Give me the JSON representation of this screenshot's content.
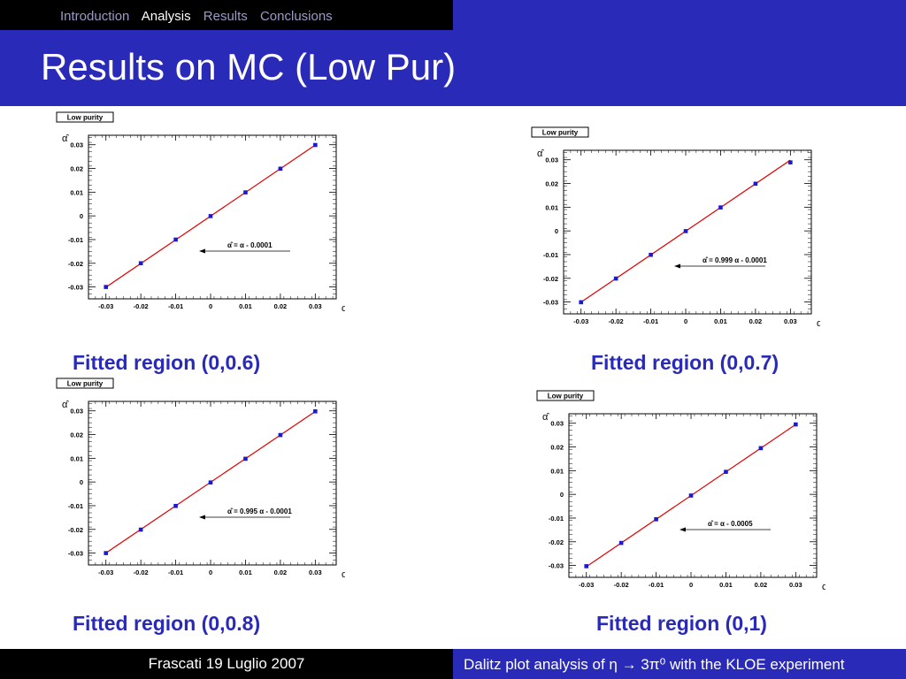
{
  "nav": {
    "items": [
      {
        "label": "Introduction",
        "active": false
      },
      {
        "label": "Analysis",
        "active": true
      },
      {
        "label": "Results",
        "active": false
      },
      {
        "label": "Conclusions",
        "active": false
      }
    ]
  },
  "header": {
    "title": "Results on MC (Low Pur)"
  },
  "colors": {
    "nav_bg": "#000000",
    "header_bg": "#2a2ab8",
    "caption": "#2a2ab8",
    "fit_line": "#e00000",
    "marker": "#1a1ad0"
  },
  "plots": [
    {
      "caption": "Fitted region (0,0.6)"
    },
    {
      "caption": "Fitted region (0,0.7)"
    },
    {
      "caption": "Fitted region (0,0.8)"
    },
    {
      "caption": "Fitted region (0,1)"
    }
  ],
  "chart_data": [
    {
      "type": "scatter",
      "title": "Low purity",
      "xlabel": "α",
      "ylabel": "α̂",
      "x": [
        -0.03,
        -0.02,
        -0.01,
        0,
        0.01,
        0.02,
        0.03
      ],
      "y": [
        -0.03,
        -0.02,
        -0.01,
        -0.0001,
        0.0099,
        0.0199,
        0.0299
      ],
      "xlim": [
        -0.035,
        0.036
      ],
      "ylim": [
        -0.035,
        0.034
      ],
      "xticks": [
        "-0.03",
        "-0.02",
        "-0.01",
        "0",
        "0.01",
        "0.02",
        "0.03"
      ],
      "yticks": [
        "-0.03",
        "-0.02",
        "-0.01",
        "0",
        "0.01",
        "0.02",
        "0.03"
      ],
      "fit": {
        "slope": 1.0,
        "intercept": -0.0001
      },
      "annotation": {
        "prefix": "α̂ = α - 0.0001"
      }
    },
    {
      "type": "scatter",
      "title": "Low purity",
      "xlabel": "α",
      "ylabel": "α̂",
      "x": [
        -0.03,
        -0.02,
        -0.01,
        0,
        0.01,
        0.02,
        0.03
      ],
      "y": [
        -0.0301,
        -0.0201,
        -0.0101,
        -0.0001,
        0.0099,
        0.0199,
        0.0289
      ],
      "xlim": [
        -0.035,
        0.036
      ],
      "ylim": [
        -0.035,
        0.034
      ],
      "xticks": [
        "-0.03",
        "-0.02",
        "-0.01",
        "0",
        "0.01",
        "0.02",
        "0.03"
      ],
      "yticks": [
        "-0.03",
        "-0.02",
        "-0.01",
        "0",
        "0.01",
        "0.02",
        "0.03"
      ],
      "fit": {
        "slope": 0.999,
        "intercept": -0.0001
      },
      "annotation": {
        "prefix": "α̂ = 0.999 α - 0.0001"
      }
    },
    {
      "type": "scatter",
      "title": "Low purity",
      "xlabel": "α",
      "ylabel": "α̂",
      "x": [
        -0.03,
        -0.02,
        -0.01,
        0,
        0.01,
        0.02,
        0.03
      ],
      "y": [
        -0.03,
        -0.0201,
        -0.0101,
        -0.0002,
        0.0098,
        0.0198,
        0.0298
      ],
      "xlim": [
        -0.035,
        0.036
      ],
      "ylim": [
        -0.035,
        0.034
      ],
      "xticks": [
        "-0.03",
        "-0.02",
        "-0.01",
        "0",
        "0.01",
        "0.02",
        "0.03"
      ],
      "yticks": [
        "-0.03",
        "-0.02",
        "-0.01",
        "0",
        "0.01",
        "0.02",
        "0.03"
      ],
      "fit": {
        "slope": 0.995,
        "intercept": -0.0001
      },
      "annotation": {
        "prefix": "α̂ = 0.995 α - 0.0001"
      }
    },
    {
      "type": "scatter",
      "title": "Low purity",
      "xlabel": "α",
      "ylabel": "α̂",
      "x": [
        -0.03,
        -0.02,
        -0.01,
        0,
        0.01,
        0.02,
        0.03
      ],
      "y": [
        -0.0303,
        -0.0205,
        -0.0105,
        -0.0005,
        0.0095,
        0.0195,
        0.0295
      ],
      "xlim": [
        -0.035,
        0.036
      ],
      "ylim": [
        -0.035,
        0.034
      ],
      "xticks": [
        "-0.03",
        "-0.02",
        "-0.01",
        "0",
        "0.01",
        "0.02",
        "0.03"
      ],
      "yticks": [
        "-0.03",
        "-0.02",
        "-0.01",
        "0",
        "0.01",
        "0.02",
        "0.03"
      ],
      "fit": {
        "slope": 1.0,
        "intercept": -0.0005
      },
      "annotation": {
        "prefix": "α̂ = α - 0.0005"
      }
    }
  ],
  "footer": {
    "left": "Frascati 19 Luglio 2007",
    "right": "Dalitz plot analysis of η → 3π⁰ with the KLOE experiment"
  }
}
